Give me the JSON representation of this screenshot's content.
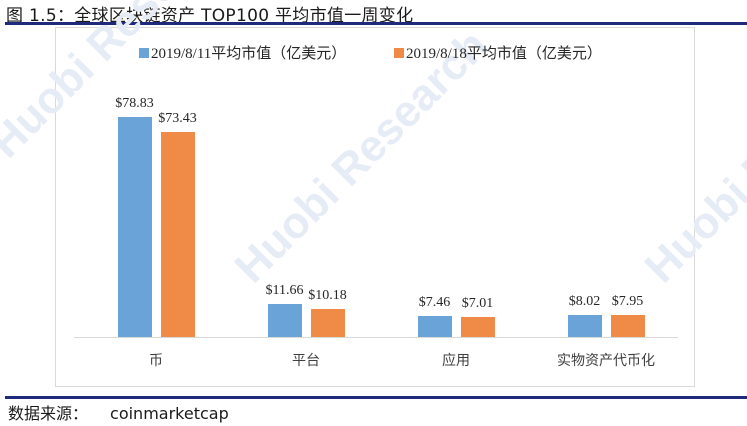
{
  "figure": {
    "title": "图 1.5：全球区块链资产 TOP100 平均市值一周变化",
    "source_label": "数据来源：",
    "source_value": "coinmarketcap",
    "watermarks": [
      "Huobi Research",
      "Huobi Research",
      "Huobi Research"
    ]
  },
  "colors": {
    "series1": "#6aa3d8",
    "series2": "#ef8b47",
    "rule": "#1f2a7c",
    "axis": "#d9d9d9"
  },
  "chart_data": {
    "type": "bar",
    "title": "全球区块链资产 TOP100 平均市值一周变化",
    "xlabel": "",
    "ylabel": "",
    "categories": [
      "币",
      "平台",
      "应用",
      "实物资产代币化"
    ],
    "series": [
      {
        "name": "2019/8/11平均市值（亿美元）",
        "values": [
          78.83,
          11.66,
          7.46,
          8.02
        ],
        "labels": [
          "$78.83",
          "$11.66",
          "$7.46",
          "$8.02"
        ],
        "color": "#6aa3d8"
      },
      {
        "name": "2019/8/18平均市值（亿美元）",
        "values": [
          73.43,
          10.18,
          7.01,
          7.95
        ],
        "labels": [
          "$73.43",
          "$10.18",
          "$7.01",
          "$7.95"
        ],
        "color": "#ef8b47"
      }
    ],
    "ylim": [
      0,
      80
    ],
    "grid": false,
    "y_axis_visible": false,
    "legend_position": "top",
    "data_labels": true
  }
}
